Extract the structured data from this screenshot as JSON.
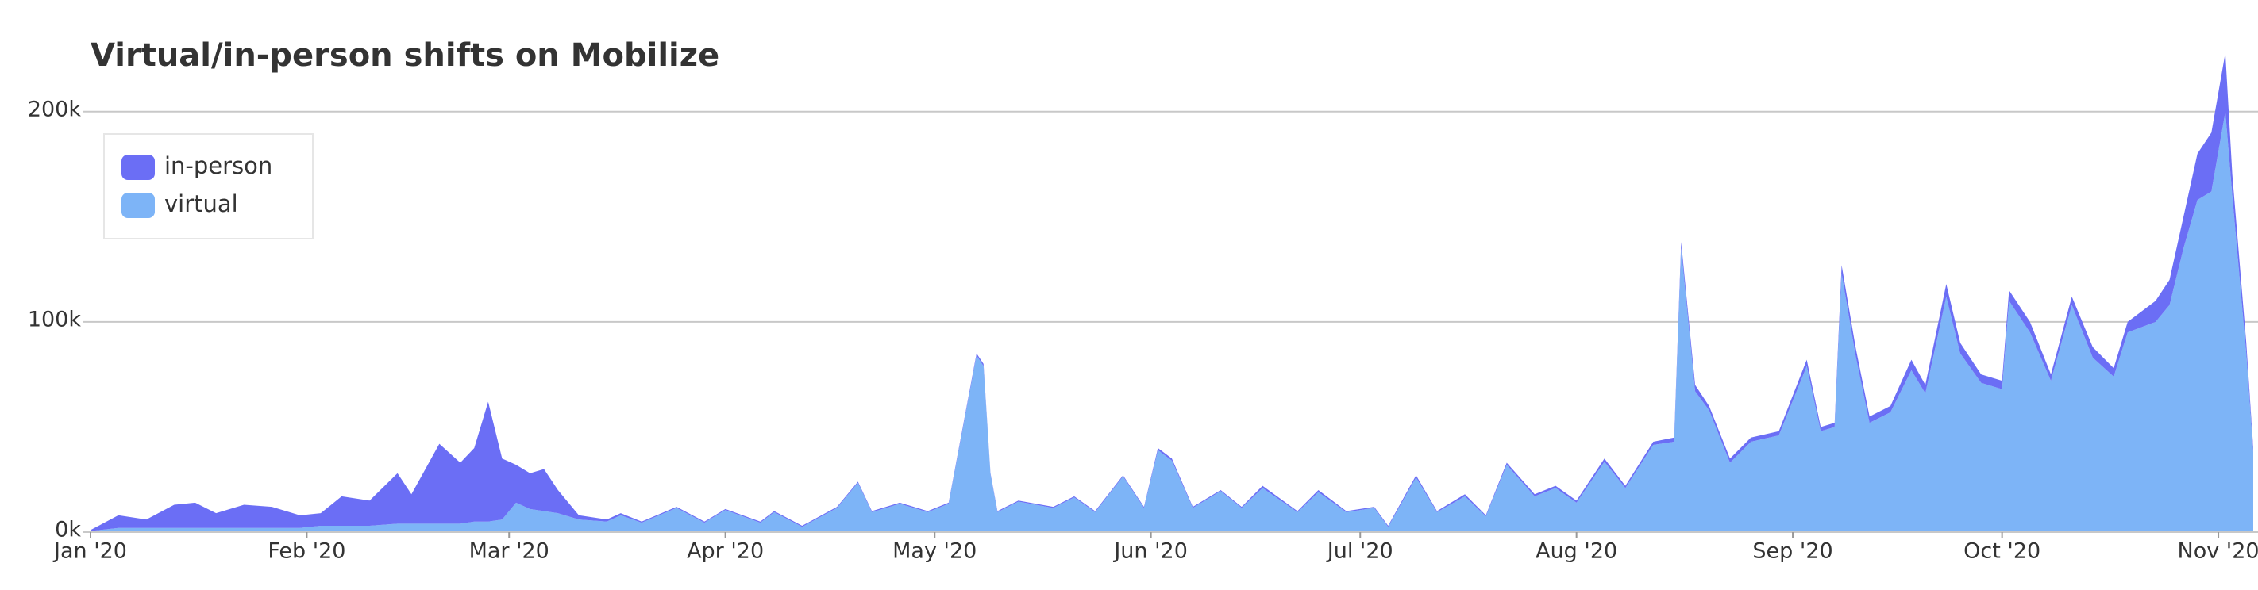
{
  "chart_data": {
    "type": "stacked_area",
    "title": "Virtual/in-person shifts on Mobilize",
    "x": [
      0,
      4,
      8,
      12,
      15,
      18,
      22,
      26,
      30,
      33,
      36,
      40,
      44,
      46,
      48,
      50,
      53,
      55,
      57,
      59,
      61,
      63,
      65,
      67,
      70,
      74,
      76,
      79,
      84,
      88,
      91,
      96,
      98,
      102,
      107,
      110,
      112,
      116,
      120,
      123,
      127,
      128,
      129,
      130,
      133,
      138,
      141,
      144,
      148,
      151,
      153,
      155,
      158,
      162,
      165,
      168,
      173,
      176,
      180,
      184,
      186,
      190,
      193,
      197,
      200,
      203,
      207,
      210,
      213,
      217,
      220,
      224,
      227,
      228,
      230,
      232,
      235,
      238,
      242,
      246,
      248,
      250,
      251,
      253,
      255,
      258,
      261,
      263,
      266,
      268,
      271,
      274,
      275,
      278,
      281,
      284,
      287,
      290,
      292,
      296,
      298,
      300,
      302,
      304,
      306,
      307,
      309,
      310
    ],
    "series": [
      {
        "name": "in-person",
        "color": "#6b6ef5",
        "values": [
          0.5,
          6,
          4,
          11,
          12,
          7,
          11,
          10,
          6,
          6,
          14,
          12,
          24,
          14,
          26,
          38,
          29,
          35,
          57,
          29,
          18,
          17,
          20,
          11,
          2,
          1,
          1,
          0.5,
          0.5,
          0.5,
          0.5,
          0.5,
          0.5,
          0.5,
          0.5,
          0.5,
          0.5,
          0.5,
          0.5,
          0.5,
          1,
          1,
          0.5,
          0.5,
          0.5,
          0.5,
          0.5,
          0.5,
          0.5,
          0.5,
          1,
          1,
          0.5,
          0.5,
          0.5,
          1,
          0.5,
          1,
          0.5,
          0.5,
          0.5,
          1,
          0.5,
          1,
          0.5,
          1,
          1,
          1,
          1,
          1.5,
          1,
          1.5,
          2,
          3,
          3,
          2,
          2,
          2,
          2,
          3,
          2,
          2,
          4,
          4,
          3,
          3,
          5,
          4,
          6,
          5,
          4,
          4,
          5,
          5,
          3,
          4,
          5,
          4,
          5,
          10,
          12,
          15,
          22,
          28,
          28,
          10,
          5,
          2
        ]
      },
      {
        "name": "virtual",
        "color": "#7db4f7",
        "values": [
          0.5,
          2,
          2,
          2,
          2,
          2,
          2,
          2,
          2,
          3,
          3,
          3,
          4,
          4,
          4,
          4,
          4,
          5,
          5,
          6,
          14,
          11,
          10,
          9,
          6,
          5,
          8,
          4.5,
          11.5,
          4.5,
          10.5,
          4.5,
          9.5,
          2.5,
          11.5,
          23.5,
          9.5,
          13.5,
          9.5,
          13.5,
          84,
          79,
          27.5,
          9.5,
          14.5,
          11.5,
          16.5,
          9.5,
          26.5,
          11.5,
          39,
          34,
          11.5,
          19.5,
          11.5,
          21,
          9.5,
          19,
          9.5,
          11.5,
          2.5,
          26,
          9.5,
          17,
          7.5,
          32,
          17,
          21,
          14,
          33.5,
          21,
          41.5,
          43,
          135,
          67,
          58,
          33,
          43,
          46,
          79,
          48,
          50,
          123,
          84,
          52,
          57,
          77,
          66,
          112,
          85,
          71,
          68,
          110,
          95,
          72,
          108,
          83,
          74,
          95,
          100,
          108,
          135,
          158,
          162,
          200,
          160,
          85,
          38
        ]
      }
    ],
    "xlim": [
      0,
      310
    ],
    "xticks": [
      {
        "value": 0,
        "label": "Jan '20"
      },
      {
        "value": 31,
        "label": "Feb '20"
      },
      {
        "value": 60,
        "label": "Mar '20"
      },
      {
        "value": 91,
        "label": "Apr '20"
      },
      {
        "value": 121,
        "label": "May '20"
      },
      {
        "value": 152,
        "label": "Jun '20"
      },
      {
        "value": 182,
        "label": "Jul '20"
      },
      {
        "value": 213,
        "label": "Aug '20"
      },
      {
        "value": 244,
        "label": "Sep '20"
      },
      {
        "value": 274,
        "label": "Oct '20"
      },
      {
        "value": 305,
        "label": "Nov '20"
      }
    ],
    "ylim": [
      0,
      235
    ],
    "yticks": [
      {
        "value": 0,
        "label": "0k"
      },
      {
        "value": 100,
        "label": "100k"
      },
      {
        "value": 200,
        "label": "200k"
      }
    ],
    "grid": true,
    "legend": "top-left"
  }
}
